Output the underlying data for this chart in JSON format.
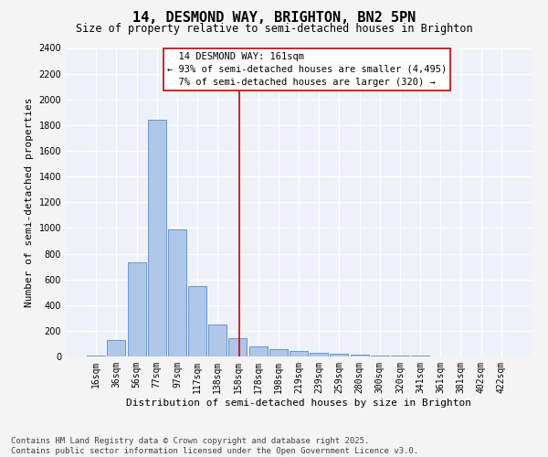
{
  "title": "14, DESMOND WAY, BRIGHTON, BN2 5PN",
  "subtitle": "Size of property relative to semi-detached houses in Brighton",
  "xlabel": "Distribution of semi-detached houses by size in Brighton",
  "ylabel": "Number of semi-detached properties",
  "bin_labels": [
    "16sqm",
    "36sqm",
    "56sqm",
    "77sqm",
    "97sqm",
    "117sqm",
    "138sqm",
    "158sqm",
    "178sqm",
    "198sqm",
    "219sqm",
    "239sqm",
    "259sqm",
    "280sqm",
    "300sqm",
    "320sqm",
    "341sqm",
    "361sqm",
    "381sqm",
    "402sqm",
    "422sqm"
  ],
  "bar_heights": [
    10,
    130,
    730,
    1840,
    990,
    550,
    250,
    140,
    75,
    55,
    40,
    30,
    20,
    15,
    10,
    7,
    5,
    3,
    2,
    1,
    0
  ],
  "bar_color": "#aec6e8",
  "bar_edge_color": "#5b8cc8",
  "vline_x_index": 7.05,
  "vline_color": "#cc0000",
  "annotation_box_color": "#cc0000",
  "property_label": "14 DESMOND WAY: 161sqm",
  "pct_smaller": 93,
  "n_smaller": 4495,
  "pct_larger": 7,
  "n_larger": 320,
  "ylim": [
    0,
    2400
  ],
  "yticks": [
    0,
    200,
    400,
    600,
    800,
    1000,
    1200,
    1400,
    1600,
    1800,
    2000,
    2200,
    2400
  ],
  "background_color": "#eef2f8",
  "grid_color": "#ffffff",
  "footer": "Contains HM Land Registry data © Crown copyright and database right 2025.\nContains public sector information licensed under the Open Government Licence v3.0.",
  "title_fontsize": 11,
  "subtitle_fontsize": 8.5,
  "axis_label_fontsize": 8,
  "tick_fontsize": 7,
  "annotation_fontsize": 7.5,
  "footer_fontsize": 6.5
}
